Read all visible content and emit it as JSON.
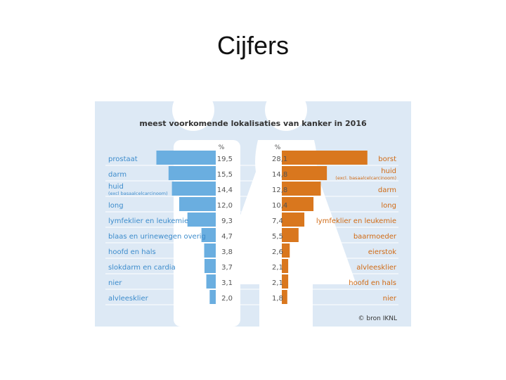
{
  "slide": {
    "title": "Cijfers"
  },
  "colors": {
    "background": "#dde9f5",
    "silhouette": "#ffffff",
    "men_bar": "#6aaee0",
    "women_bar": "#d9771e",
    "men_label": "#3d8ccc",
    "women_label": "#d06a14",
    "value_text": "#555555",
    "title_text": "#333333"
  },
  "chart_data": {
    "type": "bar",
    "layout": "population-pyramid",
    "title": "meest voorkomende lokalisaties van kanker in 2016",
    "unit_left": "%",
    "unit_right": "%",
    "xlim": [
      0,
      30
    ],
    "men": [
      {
        "label": "prostaat",
        "sublabel": "",
        "value": 19.5,
        "value_text": "19,5"
      },
      {
        "label": "darm",
        "sublabel": "",
        "value": 15.5,
        "value_text": "15,5"
      },
      {
        "label": "huid",
        "sublabel": "(excl basaalcelcarcinoom)",
        "value": 14.4,
        "value_text": "14,4"
      },
      {
        "label": "long",
        "sublabel": "",
        "value": 12.0,
        "value_text": "12,0"
      },
      {
        "label": "lymfeklier en leukemie",
        "sublabel": "",
        "value": 9.3,
        "value_text": "9,3"
      },
      {
        "label": "blaas en urinewegen overig",
        "sublabel": "",
        "value": 4.7,
        "value_text": "4,7"
      },
      {
        "label": "hoofd en hals",
        "sublabel": "",
        "value": 3.8,
        "value_text": "3,8"
      },
      {
        "label": "slokdarm en cardia",
        "sublabel": "",
        "value": 3.7,
        "value_text": "3,7"
      },
      {
        "label": "nier",
        "sublabel": "",
        "value": 3.1,
        "value_text": "3,1"
      },
      {
        "label": "alvleesklier",
        "sublabel": "",
        "value": 2.0,
        "value_text": "2,0"
      }
    ],
    "women": [
      {
        "label": "borst",
        "sublabel": "",
        "value": 28.1,
        "value_text": "28,1"
      },
      {
        "label": "huid",
        "sublabel": "(excl. basaalcelcarcinoom)",
        "value": 14.8,
        "value_text": "14,8"
      },
      {
        "label": "darm",
        "sublabel": "",
        "value": 12.8,
        "value_text": "12,8"
      },
      {
        "label": "long",
        "sublabel": "",
        "value": 10.4,
        "value_text": "10,4"
      },
      {
        "label": "lymfeklier en leukemie",
        "sublabel": "",
        "value": 7.4,
        "value_text": "7,4"
      },
      {
        "label": "baarmoeder",
        "sublabel": "",
        "value": 5.5,
        "value_text": "5,5"
      },
      {
        "label": "eierstok",
        "sublabel": "",
        "value": 2.6,
        "value_text": "2,6"
      },
      {
        "label": "alvleesklier",
        "sublabel": "",
        "value": 2.1,
        "value_text": "2,1"
      },
      {
        "label": "hoofd en hals",
        "sublabel": "",
        "value": 2.1,
        "value_text": "2,1"
      },
      {
        "label": "nier",
        "sublabel": "",
        "value": 1.8,
        "value_text": "1,8"
      }
    ],
    "source": "© bron IKNL"
  }
}
